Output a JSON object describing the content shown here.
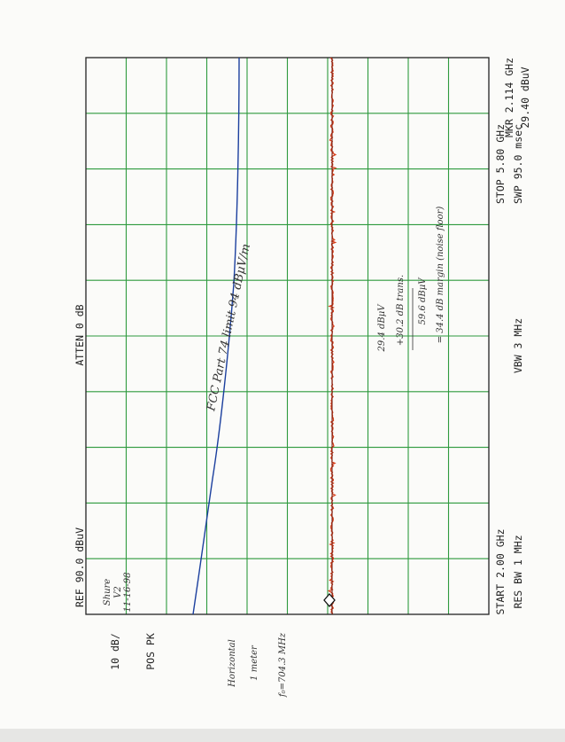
{
  "annotations": {
    "ref": "REF  90.0 dBuV",
    "atten": "ATTEN 0 dB",
    "marker_freq": "MKR 2.114 GHz",
    "marker_level": "29.40 dBuV",
    "scale": "10 dB/",
    "detector": "POS PK",
    "start": "START 2.00 GHz",
    "res_bw": "RES BW 1 MHz",
    "vbw": "VBW 3 MHz",
    "stop": "STOP 5.80 GHz",
    "sweep": "SWP 95.0 msec"
  },
  "handwritten": {
    "device": [
      "Shure",
      "V2",
      "11-16-98"
    ],
    "setup": [
      "Horizontal",
      "1 meter"
    ],
    "frequency": "f₀=704.3 MHz",
    "limit": "FCC Part 74  limit 94 dBμV/m",
    "calc": [
      "29.4 dBμV",
      "+30.2 dB trans.",
      "59.6 dBμV",
      "= 34.4 dB margin (noise floor)"
    ]
  }
}
